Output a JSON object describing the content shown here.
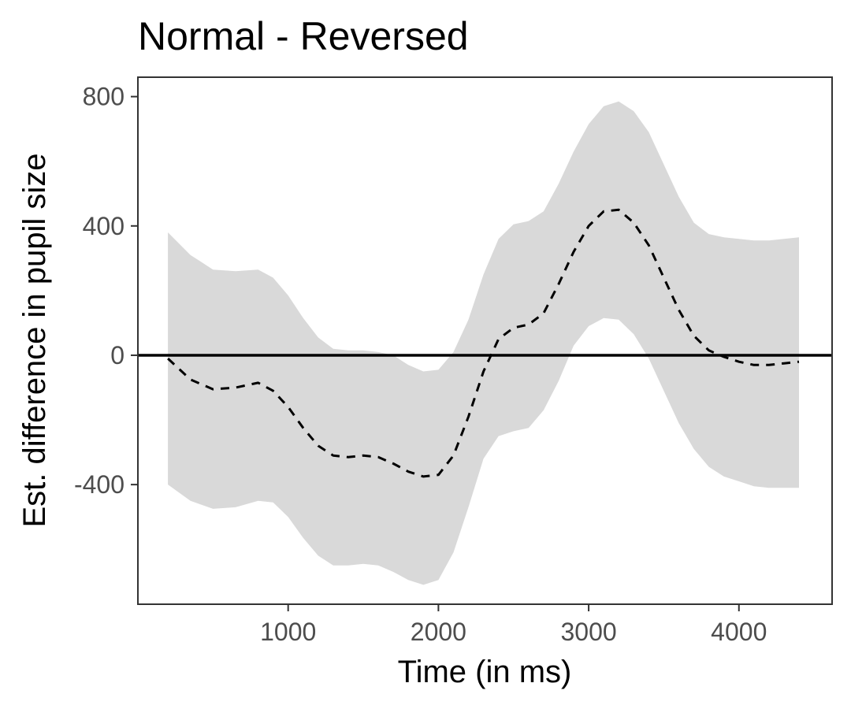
{
  "chart_data": {
    "type": "line",
    "title": "Normal - Reversed",
    "xlabel": "Time (in ms)",
    "ylabel": "Est. difference in pupil size",
    "xlim": [
      0,
      4620
    ],
    "ylim": [
      -770,
      860
    ],
    "x_ticks": [
      {
        "value": 1000,
        "label": "1000"
      },
      {
        "value": 2000,
        "label": "2000"
      },
      {
        "value": 3000,
        "label": "3000"
      },
      {
        "value": 4000,
        "label": "4000"
      }
    ],
    "y_ticks": [
      {
        "value": -400,
        "label": "-400"
      },
      {
        "value": 0,
        "label": "0"
      },
      {
        "value": 400,
        "label": "400"
      },
      {
        "value": 800,
        "label": "800"
      }
    ],
    "reference_line": 0,
    "grid": false,
    "colors": {
      "band": "#d9d9d9",
      "line": "#000000",
      "frame": "#333333",
      "ticks": "#4d4d4d"
    },
    "series": [
      {
        "style": "dashed",
        "x": [
          200,
          350,
          500,
          650,
          800,
          900,
          1000,
          1100,
          1200,
          1300,
          1400,
          1500,
          1600,
          1700,
          1800,
          1900,
          2000,
          2100,
          2200,
          2300,
          2400,
          2500,
          2600,
          2700,
          2800,
          2900,
          3000,
          3100,
          3200,
          3300,
          3400,
          3500,
          3600,
          3700,
          3800,
          3900,
          4000,
          4100,
          4200,
          4300,
          4400
        ],
        "y": [
          -10,
          -75,
          -105,
          -100,
          -85,
          -110,
          -160,
          -225,
          -280,
          -310,
          -315,
          -310,
          -315,
          -335,
          -360,
          -375,
          -370,
          -310,
          -190,
          -50,
          50,
          85,
          95,
          130,
          220,
          320,
          400,
          445,
          450,
          410,
          340,
          240,
          140,
          60,
          15,
          -5,
          -20,
          -30,
          -30,
          -25,
          -20
        ],
        "band_lower": [
          -400,
          -450,
          -475,
          -470,
          -450,
          -455,
          -500,
          -565,
          -620,
          -650,
          -650,
          -645,
          -650,
          -670,
          -695,
          -710,
          -695,
          -610,
          -470,
          -320,
          -250,
          -235,
          -225,
          -170,
          -80,
          30,
          90,
          115,
          110,
          65,
          -10,
          -110,
          -210,
          -290,
          -345,
          -375,
          -390,
          -405,
          -410,
          -410,
          -410
        ],
        "band_upper": [
          380,
          310,
          265,
          260,
          265,
          240,
          185,
          115,
          55,
          20,
          15,
          15,
          10,
          0,
          -30,
          -50,
          -45,
          10,
          110,
          250,
          360,
          405,
          415,
          445,
          530,
          630,
          715,
          770,
          785,
          755,
          690,
          590,
          490,
          410,
          375,
          365,
          360,
          355,
          355,
          360,
          365
        ]
      }
    ]
  }
}
